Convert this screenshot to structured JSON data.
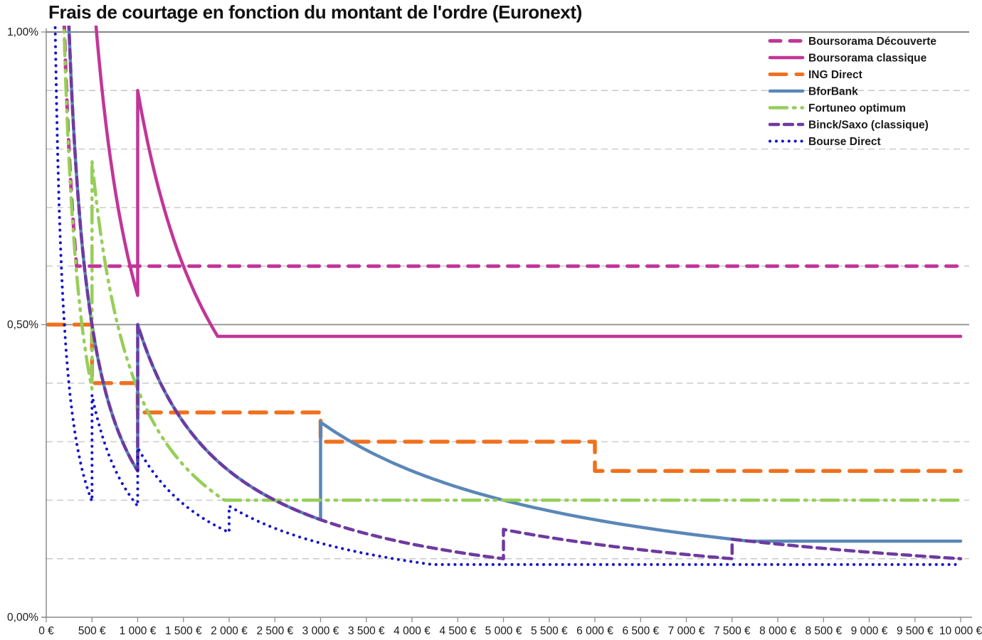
{
  "chart_data": {
    "type": "line",
    "title": "Frais de courtage en fonction du montant de l'ordre (Euronext)",
    "xlabel": "",
    "ylabel": "",
    "grid": "horizontal-only",
    "legend_position": "top-right",
    "x_axis": {
      "min_eur": 0,
      "max_eur": 10000,
      "tick_step_eur": 500,
      "tick_labels": [
        "0 €",
        "500 €",
        "1 000 €",
        "1 500 €",
        "2 000 €",
        "2 500 €",
        "3 000 €",
        "3 500 €",
        "4 000 €",
        "4 500 €",
        "5 000 €",
        "5 500 €",
        "6 000 €",
        "6 500 €",
        "7 000 €",
        "7 500 €",
        "8 000 €",
        "8 500 €",
        "9 000 €",
        "9 500 €",
        "10 000 €"
      ]
    },
    "y_axis": {
      "min_pct": 0,
      "max_pct": 1.0,
      "gridline_step_pct": 0.1,
      "solid_line_pct": [
        1.0,
        0.5
      ],
      "tick_labels": [
        {
          "pct": 1.0,
          "label": "1,00%"
        },
        {
          "pct": 0.5,
          "label": "0,50%"
        },
        {
          "pct": 0.0,
          "label": "0,00%"
        }
      ]
    },
    "series": [
      {
        "id": "boursorama-decouverte",
        "name": "Boursorama Découverte",
        "color": "#C23598",
        "line_style": "dash",
        "line_width": 5,
        "fee_schedule": [
          {
            "from_eur": 30,
            "to_eur": 10000,
            "fixed_min_eur": 1.99,
            "rate": 0.006
          }
        ]
      },
      {
        "id": "boursorama-classique",
        "name": "Boursorama classique",
        "color": "#C23598",
        "line_style": "solid",
        "line_width": 4.5,
        "fee_schedule": [
          {
            "from_eur": 30,
            "to_eur": 1000,
            "fixed_eur": 5.5
          },
          {
            "from_eur": 1000,
            "to_eur": 10000,
            "fixed_min_eur": 9.0,
            "rate": 0.0048
          }
        ]
      },
      {
        "id": "ing-direct",
        "name": "ING Direct",
        "color": "#F0701E",
        "line_style": "dash-long",
        "line_width": 5.5,
        "fee_schedule": [
          {
            "from_eur": 1,
            "to_eur": 500,
            "rate": 0.005
          },
          {
            "from_eur": 500,
            "to_eur": 1000,
            "rate": 0.004
          },
          {
            "from_eur": 1000,
            "to_eur": 3000,
            "rate": 0.0035
          },
          {
            "from_eur": 3000,
            "to_eur": 6000,
            "rate": 0.003
          },
          {
            "from_eur": 6000,
            "to_eur": 10000,
            "rate": 0.0025
          }
        ]
      },
      {
        "id": "bforbank",
        "name": "BforBank",
        "color": "#5A87B8",
        "line_style": "solid",
        "line_width": 4.5,
        "fee_schedule": [
          {
            "from_eur": 30,
            "to_eur": 1000,
            "fixed_eur": 2.5
          },
          {
            "from_eur": 1000,
            "to_eur": 3000,
            "fixed_eur": 5.0
          },
          {
            "from_eur": 3000,
            "to_eur": 10000,
            "fixed_min_eur": 10.0,
            "rate": 0.0013
          }
        ]
      },
      {
        "id": "fortuneo-optimum",
        "name": "Fortuneo optimum",
        "color": "#96CE58",
        "line_style": "dash-dot-dot",
        "line_width": 4.5,
        "fee_schedule": [
          {
            "from_eur": 30,
            "to_eur": 500,
            "fixed_eur": 1.95
          },
          {
            "from_eur": 500,
            "to_eur": 10000,
            "fixed_min_eur": 3.9,
            "rate": 0.002
          }
        ]
      },
      {
        "id": "binck-saxo",
        "name": "Binck/Saxo (classique)",
        "color": "#6E3AA0",
        "line_style": "dash-short",
        "line_width": 4.5,
        "fee_schedule": [
          {
            "from_eur": 30,
            "to_eur": 1000,
            "fixed_eur": 2.5
          },
          {
            "from_eur": 1000,
            "to_eur": 5000,
            "fixed_eur": 5.0
          },
          {
            "from_eur": 5000,
            "to_eur": 7500,
            "fixed_eur": 7.5
          },
          {
            "from_eur": 7500,
            "to_eur": 10000,
            "fixed_eur": 10.0
          }
        ]
      },
      {
        "id": "bourse-direct",
        "name": "Bourse Direct",
        "color": "#1414CC",
        "line_style": "dot",
        "line_width": 4,
        "fee_schedule": [
          {
            "from_eur": 30,
            "to_eur": 500,
            "fixed_eur": 0.99
          },
          {
            "from_eur": 500,
            "to_eur": 1000,
            "fixed_eur": 1.9
          },
          {
            "from_eur": 1000,
            "to_eur": 2000,
            "fixed_eur": 2.9
          },
          {
            "from_eur": 2000,
            "to_eur": 10000,
            "fixed_min_eur": 3.8,
            "rate": 0.0009
          }
        ]
      }
    ],
    "colors": {
      "grid_dashed": "#C4C4C4",
      "grid_solid": "#8C8C8C",
      "axis": "#8C8C8C",
      "text": "#1A1A1A",
      "background": "#FFFFFF"
    }
  }
}
